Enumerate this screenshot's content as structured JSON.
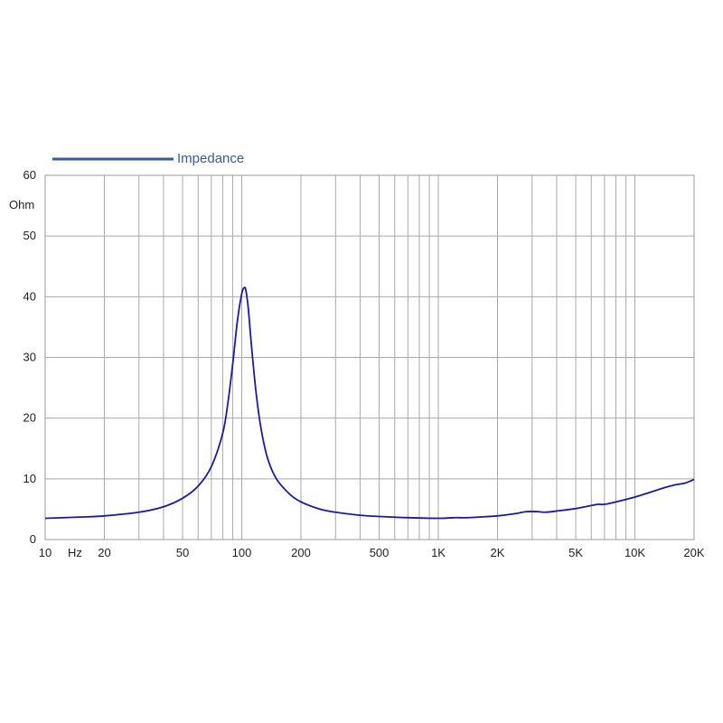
{
  "chart_data": {
    "type": "line",
    "title": "",
    "xlabel": "",
    "ylabel": "",
    "y_unit_label": "Ohm",
    "x_unit_label": "Hz",
    "x_scale": "log",
    "xlim": [
      10,
      20000
    ],
    "ylim": [
      0,
      60
    ],
    "grid": true,
    "legend_position": "top-left",
    "x_ticks": [
      {
        "value": 10,
        "label": "10"
      },
      {
        "value": 20,
        "label": "20"
      },
      {
        "value": 50,
        "label": "50"
      },
      {
        "value": 100,
        "label": "100"
      },
      {
        "value": 200,
        "label": "200"
      },
      {
        "value": 500,
        "label": "500"
      },
      {
        "value": 1000,
        "label": "1K"
      },
      {
        "value": 2000,
        "label": "2K"
      },
      {
        "value": 5000,
        "label": "5K"
      },
      {
        "value": 10000,
        "label": "10K"
      },
      {
        "value": 20000,
        "label": "20K"
      }
    ],
    "y_ticks": [
      0,
      10,
      20,
      30,
      40,
      50,
      60
    ],
    "series": [
      {
        "name": "Impedance",
        "color": "#1a1aa6",
        "legend_color": "#3a5a9a",
        "x": [
          10,
          15,
          20,
          30,
          40,
          50,
          60,
          70,
          80,
          85,
          90,
          95,
          100,
          103,
          105,
          108,
          112,
          118,
          125,
          135,
          150,
          175,
          200,
          250,
          300,
          400,
          500,
          700,
          1000,
          1200,
          1300,
          1400,
          1600,
          2000,
          2500,
          2800,
          3200,
          3500,
          4000,
          5000,
          6000,
          6500,
          7000,
          8000,
          10000,
          12000,
          14000,
          16000,
          18000,
          20000
        ],
        "y": [
          3.5,
          3.7,
          3.9,
          4.5,
          5.4,
          6.8,
          8.8,
          12.0,
          17.5,
          22.5,
          29.0,
          36.0,
          40.5,
          41.5,
          41.0,
          38.0,
          32.0,
          24.5,
          18.5,
          13.5,
          10.0,
          7.5,
          6.2,
          5.0,
          4.5,
          4.0,
          3.8,
          3.6,
          3.5,
          3.6,
          3.6,
          3.6,
          3.7,
          3.9,
          4.3,
          4.6,
          4.6,
          4.5,
          4.7,
          5.1,
          5.6,
          5.8,
          5.8,
          6.2,
          7.0,
          7.8,
          8.5,
          9.0,
          9.3,
          9.9
        ]
      }
    ]
  }
}
